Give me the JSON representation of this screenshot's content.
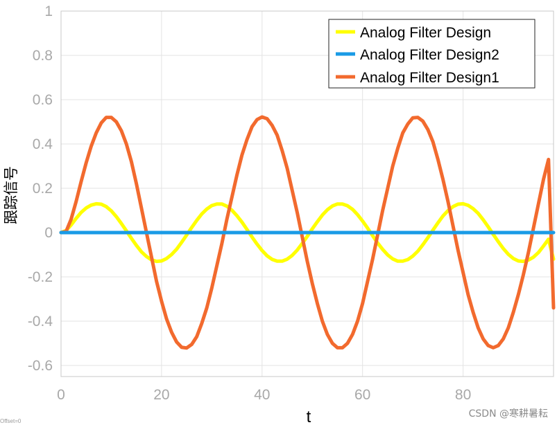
{
  "chart_data": {
    "type": "line",
    "title": "",
    "xlabel": "t",
    "ylabel": "跟踪信号",
    "xlim": [
      0,
      98
    ],
    "ylim": [
      -0.65,
      1
    ],
    "grid": true,
    "legend_position": "top-right",
    "x_ticks": [
      0,
      20,
      40,
      60,
      80
    ],
    "x_tick_labels": [
      "0",
      "20",
      "40",
      "60",
      "80"
    ],
    "y_ticks": [
      -0.6,
      -0.4,
      -0.2,
      0,
      0.2,
      0.4,
      0.6,
      0.8,
      1
    ],
    "y_tick_labels": [
      "-0.6",
      "-0.4",
      "-0.2",
      "0",
      "0.2",
      "0.4",
      "0.6",
      "0.8",
      "1"
    ],
    "series": [
      {
        "name": "Analog Filter Design",
        "color": "#ffff00",
        "x": [
          0,
          1,
          2,
          3,
          4,
          5,
          6,
          7,
          8,
          9,
          10,
          11,
          12,
          13,
          14,
          15,
          16,
          17,
          18,
          19,
          20,
          21,
          22,
          23,
          24,
          25,
          26,
          27,
          28,
          29,
          30,
          31,
          32,
          33,
          34,
          35,
          36,
          37,
          38,
          39,
          40,
          41,
          42,
          43,
          44,
          45,
          46,
          47,
          48,
          49,
          50,
          51,
          52,
          53,
          54,
          55,
          56,
          57,
          58,
          59,
          60,
          61,
          62,
          63,
          64,
          65,
          66,
          67,
          68,
          69,
          70,
          71,
          72,
          73,
          74,
          75,
          76,
          77,
          78,
          79,
          80,
          81,
          82,
          83,
          84,
          85,
          86,
          87,
          88,
          89,
          90,
          91,
          92,
          93,
          94,
          95,
          96,
          97,
          98
        ],
        "values": [
          0,
          0.009,
          0.034,
          0.064,
          0.091,
          0.111,
          0.124,
          0.13,
          0.128,
          0.117,
          0.098,
          0.072,
          0.041,
          0.008,
          -0.026,
          -0.058,
          -0.087,
          -0.108,
          -0.123,
          -0.13,
          -0.128,
          -0.117,
          -0.099,
          -0.075,
          -0.044,
          -0.011,
          0.023,
          0.055,
          0.084,
          0.106,
          0.122,
          0.129,
          0.129,
          0.119,
          0.101,
          0.076,
          0.047,
          0.014,
          -0.02,
          -0.052,
          -0.081,
          -0.105,
          -0.121,
          -0.129,
          -0.129,
          -0.12,
          -0.103,
          -0.079,
          -0.049,
          -0.017,
          0.017,
          0.049,
          0.079,
          0.103,
          0.12,
          0.129,
          0.129,
          0.121,
          0.105,
          0.081,
          0.052,
          0.02,
          -0.014,
          -0.047,
          -0.076,
          -0.101,
          -0.119,
          -0.129,
          -0.129,
          -0.122,
          -0.106,
          -0.084,
          -0.055,
          -0.023,
          0.011,
          0.044,
          0.075,
          0.099,
          0.117,
          0.128,
          0.13,
          0.123,
          0.108,
          0.087,
          0.058,
          0.026,
          -0.008,
          -0.041,
          -0.072,
          -0.098,
          -0.117,
          -0.128,
          -0.13,
          -0.124,
          -0.111,
          -0.09,
          -0.061,
          -0.03,
          -0.12
        ]
      },
      {
        "name": "Analog Filter Design2",
        "color": "#1a9be6",
        "x": [
          0,
          98
        ],
        "values": [
          0,
          0
        ]
      },
      {
        "name": "Analog Filter Design1",
        "color": "#f26a2e",
        "x": [
          0,
          1,
          2,
          3,
          4,
          5,
          6,
          7,
          8,
          9,
          10,
          11,
          12,
          13,
          14,
          15,
          16,
          17,
          18,
          19,
          20,
          21,
          22,
          23,
          24,
          25,
          26,
          27,
          28,
          29,
          30,
          31,
          32,
          33,
          34,
          35,
          36,
          37,
          38,
          39,
          40,
          41,
          42,
          43,
          44,
          45,
          46,
          47,
          48,
          49,
          50,
          51,
          52,
          53,
          54,
          55,
          56,
          57,
          58,
          59,
          60,
          61,
          62,
          63,
          64,
          65,
          66,
          67,
          68,
          69,
          70,
          71,
          72,
          73,
          74,
          75,
          76,
          77,
          78,
          79,
          80,
          81,
          82,
          83,
          84,
          85,
          86,
          87,
          88,
          89,
          90,
          91,
          92,
          93,
          94,
          95,
          96,
          97,
          98
        ],
        "values": [
          0,
          0.005,
          0.06,
          0.14,
          0.23,
          0.315,
          0.39,
          0.45,
          0.495,
          0.52,
          0.52,
          0.5,
          0.46,
          0.4,
          0.32,
          0.22,
          0.11,
          0,
          -0.11,
          -0.22,
          -0.31,
          -0.39,
          -0.45,
          -0.494,
          -0.518,
          -0.521,
          -0.505,
          -0.47,
          -0.41,
          -0.34,
          -0.25,
          -0.15,
          -0.05,
          0.06,
          0.16,
          0.26,
          0.35,
          0.42,
          0.478,
          0.51,
          0.522,
          0.514,
          0.484,
          0.44,
          0.37,
          0.29,
          0.19,
          0.09,
          -0.02,
          -0.13,
          -0.23,
          -0.32,
          -0.4,
          -0.46,
          -0.5,
          -0.52,
          -0.52,
          -0.5,
          -0.46,
          -0.4,
          -0.32,
          -0.22,
          -0.12,
          -0.01,
          0.1,
          0.2,
          0.3,
          0.38,
          0.45,
          0.49,
          0.518,
          0.52,
          0.503,
          0.465,
          0.41,
          0.33,
          0.24,
          0.14,
          0.03,
          -0.08,
          -0.18,
          -0.28,
          -0.36,
          -0.43,
          -0.48,
          -0.51,
          -0.52,
          -0.51,
          -0.48,
          -0.43,
          -0.36,
          -0.28,
          -0.19,
          -0.09,
          0.02,
          0.13,
          0.24,
          0.33,
          -0.34
        ]
      }
    ]
  },
  "legend": {
    "entries": [
      "Analog Filter Design",
      "Analog Filter Design2",
      "Analog Filter Design1"
    ]
  },
  "footer": {
    "offset_text": "Offset=0",
    "watermark": "CSDN @寒耕暑耘"
  }
}
